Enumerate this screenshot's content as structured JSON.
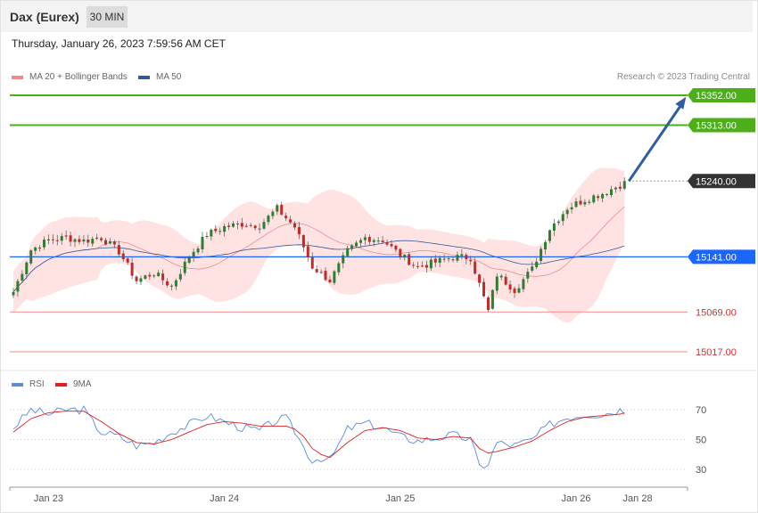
{
  "header": {
    "title": "Dax (Eurex)",
    "timeframe": "30 MIN",
    "datetime": "Thursday, January 26, 2023 7:59:56 AM CET"
  },
  "legend": {
    "ma20_label": "MA 20 + Bollinger Bands",
    "ma50_label": "MA 50",
    "copyright": "Research © 2023 Trading Central"
  },
  "colors": {
    "up_candle": "#2e7d32",
    "down_candle": "#c62828",
    "ma20": "#f08a8a",
    "ma50": "#2f5b9a",
    "bollinger_fill": "#ffe3e3",
    "resistance": "#4caf1a",
    "support": "#f28a8a",
    "current": "#333333",
    "pivot": "#1a66ff",
    "arrow": "#2f5ea0",
    "rsi": "#5b8bd9",
    "rsi_ma": "#e02020"
  },
  "chart_data": [
    {
      "type": "candlestick",
      "title": "",
      "ylim": [
        14990,
        15370
      ],
      "levels": [
        {
          "value": 15352.0,
          "label": "15352.00",
          "kind": "resistance"
        },
        {
          "value": 15313.0,
          "label": "15313.00",
          "kind": "resistance"
        },
        {
          "value": 15240.0,
          "label": "15240.00",
          "kind": "current"
        },
        {
          "value": 15141.0,
          "label": "15141.00",
          "kind": "pivot"
        },
        {
          "value": 15069.0,
          "label": "15069.00",
          "kind": "support"
        },
        {
          "value": 15017.0,
          "label": "15017.00",
          "kind": "support"
        }
      ],
      "xticks": [
        "Jan 23",
        "Jan 24",
        "Jan 25",
        "Jan 26",
        "Jan 28"
      ],
      "xtick_index": [
        8,
        48,
        88,
        128,
        142
      ],
      "candle_count": 140,
      "anchors": [
        [
          0,
          15095
        ],
        [
          4,
          15150
        ],
        [
          8,
          15163
        ],
        [
          12,
          15166
        ],
        [
          16,
          15162
        ],
        [
          20,
          15166
        ],
        [
          24,
          15148
        ],
        [
          28,
          15110
        ],
        [
          32,
          15120
        ],
        [
          36,
          15102
        ],
        [
          40,
          15142
        ],
        [
          44,
          15170
        ],
        [
          48,
          15180
        ],
        [
          52,
          15184
        ],
        [
          56,
          15182
        ],
        [
          60,
          15204
        ],
        [
          64,
          15180
        ],
        [
          68,
          15128
        ],
        [
          72,
          15110
        ],
        [
          76,
          15148
        ],
        [
          80,
          15166
        ],
        [
          84,
          15163
        ],
        [
          88,
          15143
        ],
        [
          92,
          15128
        ],
        [
          96,
          15134
        ],
        [
          100,
          15141
        ],
        [
          104,
          15140
        ],
        [
          108,
          15070
        ],
        [
          110,
          15118
        ],
        [
          114,
          15098
        ],
        [
          118,
          15125
        ],
        [
          122,
          15178
        ],
        [
          126,
          15205
        ],
        [
          130,
          15216
        ],
        [
          134,
          15224
        ],
        [
          138,
          15235
        ],
        [
          139,
          15240
        ]
      ],
      "arrow": {
        "from_index": 140,
        "from_value": 15240,
        "to_index": 153,
        "to_value": 15350
      }
    },
    {
      "type": "line",
      "title": "",
      "series_labels": [
        "RSI",
        "9MA"
      ],
      "ylim": [
        20,
        78
      ],
      "yticks": [
        70,
        50,
        30
      ],
      "rsi_anchors": [
        [
          0,
          58
        ],
        [
          4,
          70
        ],
        [
          8,
          67
        ],
        [
          12,
          70
        ],
        [
          16,
          70
        ],
        [
          18,
          62
        ],
        [
          20,
          55
        ],
        [
          24,
          52
        ],
        [
          28,
          46
        ],
        [
          32,
          48
        ],
        [
          36,
          55
        ],
        [
          40,
          60
        ],
        [
          44,
          66
        ],
        [
          48,
          62
        ],
        [
          52,
          58
        ],
        [
          56,
          56
        ],
        [
          60,
          63
        ],
        [
          62,
          64
        ],
        [
          64,
          56
        ],
        [
          66,
          45
        ],
        [
          68,
          36
        ],
        [
          70,
          38
        ],
        [
          72,
          36
        ],
        [
          76,
          57
        ],
        [
          80,
          61
        ],
        [
          84,
          58
        ],
        [
          88,
          52
        ],
        [
          92,
          49
        ],
        [
          96,
          51
        ],
        [
          100,
          53
        ],
        [
          104,
          50
        ],
        [
          106,
          32
        ],
        [
          108,
          34
        ],
        [
          110,
          48
        ],
        [
          114,
          46
        ],
        [
          118,
          50
        ],
        [
          122,
          60
        ],
        [
          126,
          65
        ],
        [
          130,
          67
        ],
        [
          134,
          67
        ],
        [
          138,
          70
        ],
        [
          139,
          69
        ]
      ],
      "ma_anchors": [
        [
          0,
          55
        ],
        [
          4,
          64
        ],
        [
          8,
          68
        ],
        [
          12,
          69
        ],
        [
          16,
          69
        ],
        [
          20,
          62
        ],
        [
          24,
          54
        ],
        [
          28,
          48
        ],
        [
          32,
          47
        ],
        [
          36,
          50
        ],
        [
          40,
          55
        ],
        [
          44,
          60
        ],
        [
          48,
          62
        ],
        [
          52,
          61
        ],
        [
          56,
          59
        ],
        [
          60,
          59
        ],
        [
          62,
          59
        ],
        [
          64,
          57
        ],
        [
          66,
          52
        ],
        [
          68,
          44
        ],
        [
          70,
          40
        ],
        [
          72,
          38
        ],
        [
          76,
          48
        ],
        [
          80,
          56
        ],
        [
          84,
          58
        ],
        [
          88,
          56
        ],
        [
          92,
          51
        ],
        [
          96,
          50
        ],
        [
          100,
          52
        ],
        [
          104,
          51
        ],
        [
          106,
          44
        ],
        [
          108,
          41
        ],
        [
          110,
          42
        ],
        [
          114,
          45
        ],
        [
          118,
          49
        ],
        [
          122,
          56
        ],
        [
          126,
          62
        ],
        [
          130,
          65
        ],
        [
          134,
          66
        ],
        [
          138,
          67
        ],
        [
          139,
          68
        ]
      ]
    }
  ]
}
